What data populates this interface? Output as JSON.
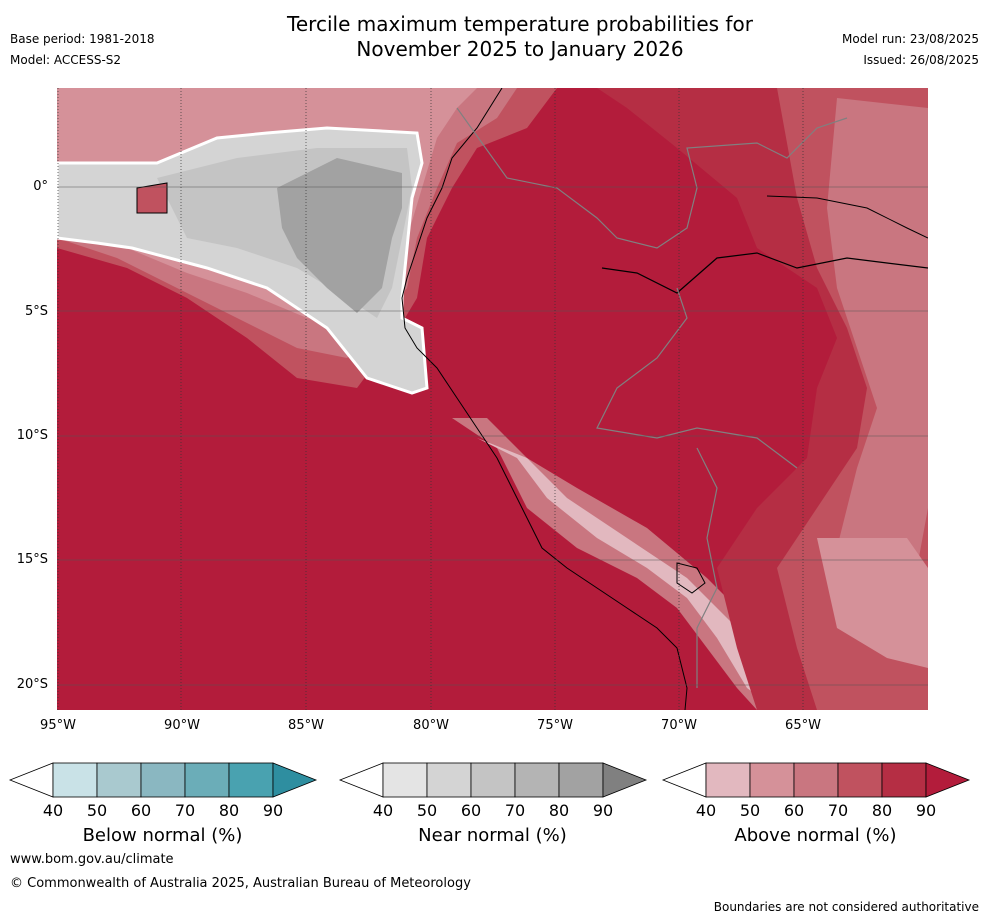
{
  "header": {
    "title_line1": "Tercile maximum temperature probabilities for",
    "title_line2": "November 2025 to January 2026",
    "base_period": "Base period: 1981-2018",
    "model": "Model: ACCESS-S2",
    "model_run": "Model run: 23/08/2025",
    "issued": "Issued: 26/08/2025"
  },
  "map": {
    "lat_labels": [
      "0°",
      "5°S",
      "10°S",
      "15°S",
      "20°S"
    ],
    "lon_labels": [
      "95°W",
      "90°W",
      "85°W",
      "80°W",
      "75°W",
      "70°W",
      "65°W"
    ]
  },
  "legends": [
    {
      "title": "Below normal (%)",
      "ticks": [
        "40",
        "50",
        "60",
        "70",
        "80",
        "90"
      ],
      "colors": [
        "#ffffff",
        "#c9e2e7",
        "#a9c9cf",
        "#8ab7c1",
        "#6badb8",
        "#49a2b0",
        "#2e8ea0"
      ]
    },
    {
      "title": "Near normal (%)",
      "ticks": [
        "40",
        "50",
        "60",
        "70",
        "80",
        "90"
      ],
      "colors": [
        "#ffffff",
        "#e4e4e4",
        "#d4d4d4",
        "#c4c4c4",
        "#b4b4b4",
        "#a2a2a2",
        "#808080"
      ]
    },
    {
      "title": "Above normal (%)",
      "ticks": [
        "40",
        "50",
        "60",
        "70",
        "80",
        "90"
      ],
      "colors": [
        "#ffffff",
        "#e2b8bf",
        "#d59199",
        "#c97680",
        "#c0525f",
        "#b52e44",
        "#b31c3b"
      ]
    }
  ],
  "footer": {
    "url": "www.bom.gov.au/climate",
    "copyright": "© Commonwealth of Australia 2025, Australian Bureau of Meteorology",
    "disclaimer": "Boundaries are not considered authoritative"
  }
}
